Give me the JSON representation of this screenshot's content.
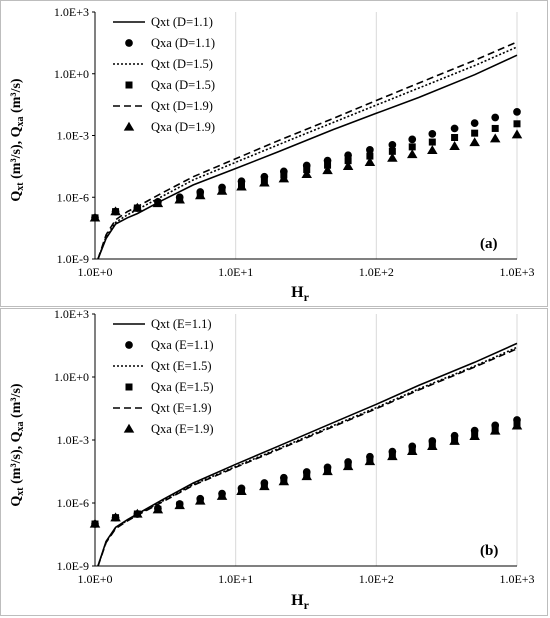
{
  "chart_data": [
    {
      "type": "line",
      "panel_label": "(a)",
      "xlabel": "Hr",
      "xlabel_main": "H",
      "xlabel_sub": "r",
      "ylabel": "Qxt (m³/s), Qxa (m³/s)",
      "ylabel_parts": {
        "q1": "Q",
        "s1": "xt",
        "u1": " (m³/s), ",
        "q2": "Q",
        "s2": "xa",
        "u2": " (m³/s)"
      },
      "x_scale": "log",
      "y_scale": "log",
      "xlim": [
        1,
        1000
      ],
      "ylim": [
        1e-09,
        1000
      ],
      "x_ticks": [
        {
          "v": 1,
          "label": "1.0E+0"
        },
        {
          "v": 10,
          "label": "1.0E+1"
        },
        {
          "v": 100,
          "label": "1.0E+2"
        },
        {
          "v": 1000,
          "label": "1.0E+3"
        }
      ],
      "y_ticks": [
        {
          "v": 1e-09,
          "label": "1.0E-9"
        },
        {
          "v": 1e-06,
          "label": "1.0E-6"
        },
        {
          "v": 0.001,
          "label": "1.0E-3"
        },
        {
          "v": 1,
          "label": "1.0E+0"
        },
        {
          "v": 1000,
          "label": "1.0E+3"
        }
      ],
      "grid": "vertical",
      "legend_position": "top-left",
      "series": [
        {
          "name": "Qxt (D=1.1)",
          "kind": "line",
          "dash": "solid",
          "x": [
            1.05,
            1.2,
            1.4,
            1.7,
            2,
            3,
            5,
            10,
            20,
            50,
            100,
            200,
            500,
            1000
          ],
          "y": [
            1e-09,
            1e-08,
            5e-08,
            1e-07,
            1.6e-07,
            7e-07,
            4e-06,
            2.5e-05,
            0.00016,
            0.002,
            0.012,
            0.07,
            0.9,
            8
          ]
        },
        {
          "name": "Qxa (D=1.1)",
          "kind": "scatter",
          "marker": "circle",
          "x": [
            1,
            1.4,
            2,
            2.8,
            4,
            5.6,
            8,
            11,
            16,
            22,
            32,
            45,
            63,
            90,
            130,
            180,
            250,
            360,
            500,
            700,
            1000
          ],
          "y": [
            1e-07,
            2e-07,
            3e-07,
            6e-07,
            1e-06,
            1.8e-06,
            3e-06,
            6e-06,
            1e-05,
            1.8e-05,
            3.5e-05,
            6e-05,
            0.00011,
            0.0002,
            0.00035,
            0.00065,
            0.0012,
            0.0022,
            0.004,
            0.0075,
            0.014
          ]
        },
        {
          "name": "Qxt (D=1.5)",
          "kind": "line",
          "dash": "dotted",
          "x": [
            1.05,
            1.2,
            1.4,
            1.7,
            2,
            3,
            5,
            10,
            20,
            50,
            100,
            200,
            500,
            1000
          ],
          "y": [
            1e-09,
            1.2e-08,
            6e-08,
            1.4e-07,
            2.5e-07,
            1.1e-06,
            7e-06,
            5e-05,
            0.00035,
            0.0045,
            0.03,
            0.2,
            2.5,
            20
          ]
        },
        {
          "name": "Qxa (D=1.5)",
          "kind": "scatter",
          "marker": "square",
          "x": [
            1,
            1.4,
            2,
            2.8,
            4,
            5.6,
            8,
            11,
            16,
            22,
            32,
            45,
            63,
            90,
            130,
            180,
            250,
            360,
            500,
            700,
            1000
          ],
          "y": [
            1e-07,
            2e-07,
            3e-07,
            5e-07,
            8e-07,
            1.4e-06,
            2.4e-06,
            4e-06,
            7e-06,
            1.2e-05,
            2.2e-05,
            3.6e-05,
            6e-05,
            0.0001,
            0.00017,
            0.00028,
            0.00048,
            0.0008,
            0.0013,
            0.0022,
            0.0037
          ]
        },
        {
          "name": "Qxt (D=1.9)",
          "kind": "line",
          "dash": "dashed",
          "x": [
            1.05,
            1.2,
            1.4,
            1.7,
            2,
            3,
            5,
            10,
            20,
            50,
            100,
            200,
            500,
            1000
          ],
          "y": [
            1e-09,
            1.5e-08,
            8e-08,
            2e-07,
            3.5e-07,
            1.6e-06,
            1e-05,
            7.5e-05,
            0.00055,
            0.007,
            0.05,
            0.35,
            4.5,
            35
          ]
        },
        {
          "name": "Qxa (D=1.9)",
          "kind": "scatter",
          "marker": "triangle",
          "x": [
            1,
            1.4,
            2,
            2.8,
            4,
            5.6,
            8,
            11,
            16,
            22,
            32,
            45,
            63,
            90,
            130,
            180,
            250,
            360,
            500,
            700,
            1000
          ],
          "y": [
            1e-07,
            2e-07,
            3e-07,
            5e-07,
            7.5e-07,
            1.2e-06,
            2e-06,
            3.2e-06,
            5e-06,
            8e-06,
            1.3e-05,
            2e-05,
            3.2e-05,
            5e-05,
            8e-05,
            0.00012,
            0.00019,
            0.0003,
            0.00046,
            0.0007,
            0.0011
          ]
        }
      ]
    },
    {
      "type": "line",
      "panel_label": "(b)",
      "xlabel": "Hr",
      "xlabel_main": "H",
      "xlabel_sub": "r",
      "ylabel": "Qxt (m³/s), Qxa (m³/s)",
      "ylabel_parts": {
        "q1": "Q",
        "s1": "xt",
        "u1": " (m³/s), ",
        "q2": "Q",
        "s2": "xa",
        "u2": " (m³/s)"
      },
      "x_scale": "log",
      "y_scale": "log",
      "xlim": [
        1,
        1000
      ],
      "ylim": [
        1e-09,
        1000
      ],
      "x_ticks": [
        {
          "v": 1,
          "label": "1.0E+0"
        },
        {
          "v": 10,
          "label": "1.0E+1"
        },
        {
          "v": 100,
          "label": "1.0E+2"
        },
        {
          "v": 1000,
          "label": "1.0E+3"
        }
      ],
      "y_ticks": [
        {
          "v": 1e-09,
          "label": "1.0E-9"
        },
        {
          "v": 1e-06,
          "label": "1.0E-6"
        },
        {
          "v": 0.001,
          "label": "1.0E-3"
        },
        {
          "v": 1,
          "label": "1.0E+0"
        },
        {
          "v": 1000,
          "label": "1.0E+3"
        }
      ],
      "grid": "vertical",
      "legend_position": "top-left",
      "series": [
        {
          "name": "Qxt (E=1.1)",
          "kind": "line",
          "dash": "solid",
          "x": [
            1.05,
            1.2,
            1.4,
            1.7,
            2,
            3,
            5,
            10,
            20,
            50,
            100,
            200,
            500,
            1000
          ],
          "y": [
            1e-09,
            1.5e-08,
            7e-08,
            1.6e-07,
            3e-07,
            1.4e-06,
            9e-06,
            7e-05,
            0.0005,
            0.007,
            0.05,
            0.4,
            5,
            40
          ]
        },
        {
          "name": "Qxa (E=1.1)",
          "kind": "scatter",
          "marker": "circle",
          "x": [
            1,
            1.4,
            2,
            2.8,
            4,
            5.6,
            8,
            11,
            16,
            22,
            32,
            45,
            63,
            90,
            130,
            180,
            250,
            360,
            500,
            700,
            1000
          ],
          "y": [
            1e-07,
            2e-07,
            3e-07,
            5.5e-07,
            9e-07,
            1.6e-06,
            2.8e-06,
            5e-06,
            9e-06,
            1.6e-05,
            3e-05,
            5e-05,
            9e-05,
            0.00016,
            0.00028,
            0.0005,
            0.0009,
            0.0016,
            0.0028,
            0.005,
            0.009
          ]
        },
        {
          "name": "Qxt (E=1.5)",
          "kind": "line",
          "dash": "dotted",
          "x": [
            1.05,
            1.2,
            1.4,
            1.7,
            2,
            3,
            5,
            10,
            20,
            50,
            100,
            200,
            500,
            1000
          ],
          "y": [
            1e-09,
            1.4e-08,
            6.5e-08,
            1.5e-07,
            2.8e-07,
            1.2e-06,
            7.5e-06,
            5.5e-05,
            0.00038,
            0.005,
            0.035,
            0.27,
            3.3,
            26
          ]
        },
        {
          "name": "Qxa (E=1.5)",
          "kind": "scatter",
          "marker": "square",
          "x": [
            1,
            1.4,
            2,
            2.8,
            4,
            5.6,
            8,
            11,
            16,
            22,
            32,
            45,
            63,
            90,
            130,
            180,
            250,
            360,
            500,
            700,
            1000
          ],
          "y": [
            1e-07,
            2e-07,
            3e-07,
            5e-07,
            8e-07,
            1.3e-06,
            2.2e-06,
            3.8e-06,
            6.5e-06,
            1.1e-05,
            2e-05,
            3.4e-05,
            6e-05,
            0.0001,
            0.00018,
            0.00031,
            0.00055,
            0.00095,
            0.0017,
            0.003,
            0.0052
          ]
        },
        {
          "name": "Qxt (E=1.9)",
          "kind": "line",
          "dash": "dashed",
          "x": [
            1.05,
            1.2,
            1.4,
            1.7,
            2,
            3,
            5,
            10,
            20,
            50,
            100,
            200,
            500,
            1000
          ],
          "y": [
            1e-09,
            1.3e-08,
            6e-08,
            1.4e-07,
            2.6e-07,
            1.1e-06,
            7e-06,
            5e-05,
            0.00034,
            0.0045,
            0.031,
            0.24,
            3,
            22
          ]
        },
        {
          "name": "Qxa (E=1.9)",
          "kind": "scatter",
          "marker": "triangle",
          "x": [
            1,
            1.4,
            2,
            2.8,
            4,
            5.6,
            8,
            11,
            16,
            22,
            32,
            45,
            63,
            90,
            130,
            180,
            250,
            360,
            500,
            700,
            1000
          ],
          "y": [
            1e-07,
            2e-07,
            3e-07,
            4.8e-07,
            7.6e-07,
            1.25e-06,
            2.1e-06,
            3.6e-06,
            6.1e-06,
            1.05e-05,
            1.85e-05,
            3.2e-05,
            5.5e-05,
            9.5e-05,
            0.000165,
            0.00029,
            0.0005,
            0.00088,
            0.0015,
            0.0027,
            0.0047
          ]
        }
      ]
    }
  ]
}
